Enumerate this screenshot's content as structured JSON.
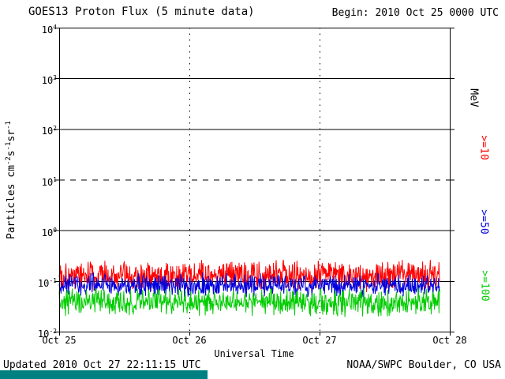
{
  "header": {
    "title": "GOES13 Proton Flux (5 minute data)",
    "begin_label": "Begin: 2010 Oct 25 0000 UTC"
  },
  "footer": {
    "updated_label": "Updated 2010 Oct 27 22:11:15 UTC",
    "source_label": "NOAA/SWPC Boulder, CO USA"
  },
  "colors": {
    "background": "#FFFFFF",
    "axis": "#000000",
    "accent_bar": "#008080"
  },
  "chart_data": {
    "type": "line",
    "title": "GOES13 Proton Flux (5 minute data)",
    "xlabel": "Universal Time",
    "ylabel": "Particles cm-2 s-1 sr-1",
    "ylabel_parts": [
      {
        "text": "Particles cm"
      },
      {
        "text": "-2",
        "sup": true
      },
      {
        "text": "s"
      },
      {
        "text": "-1",
        "sup": true
      },
      {
        "text": "sr"
      },
      {
        "text": "-1",
        "sup": true
      }
    ],
    "y_scale": "log",
    "ylim": [
      0.01,
      10000
    ],
    "y_tick_exponents": [
      4,
      3,
      2,
      1,
      0,
      -1,
      -2
    ],
    "x_ticks": [
      "Oct 25",
      "Oct 26",
      "Oct 27",
      "Oct 28"
    ],
    "x_range_days": 3,
    "sample_interval_minutes": 5,
    "data_end_day_fraction": 2.9245,
    "grid": {
      "solid_decades": [
        3,
        2,
        0,
        -1
      ],
      "dashed_decades": [
        1
      ],
      "vertical_dotted_days": [
        1,
        2
      ]
    },
    "right_axis_unit": "MeV",
    "series": [
      {
        "label": ">=10",
        "unit": "MeV",
        "color": "#FF0000",
        "typical_flux": 0.13,
        "flux_range": [
          0.06,
          0.3
        ],
        "log10_noise_amp": 0.35,
        "seed": 101
      },
      {
        "label": ">=50",
        "unit": "MeV",
        "color": "#0000DD",
        "typical_flux": 0.082,
        "flux_range": [
          0.045,
          0.15
        ],
        "log10_noise_amp": 0.26,
        "seed": 202
      },
      {
        "label": ">=100",
        "unit": "MeV",
        "color": "#00CC00",
        "typical_flux": 0.038,
        "flux_range": [
          0.019,
          0.076
        ],
        "log10_noise_amp": 0.3,
        "seed": 303
      }
    ]
  }
}
